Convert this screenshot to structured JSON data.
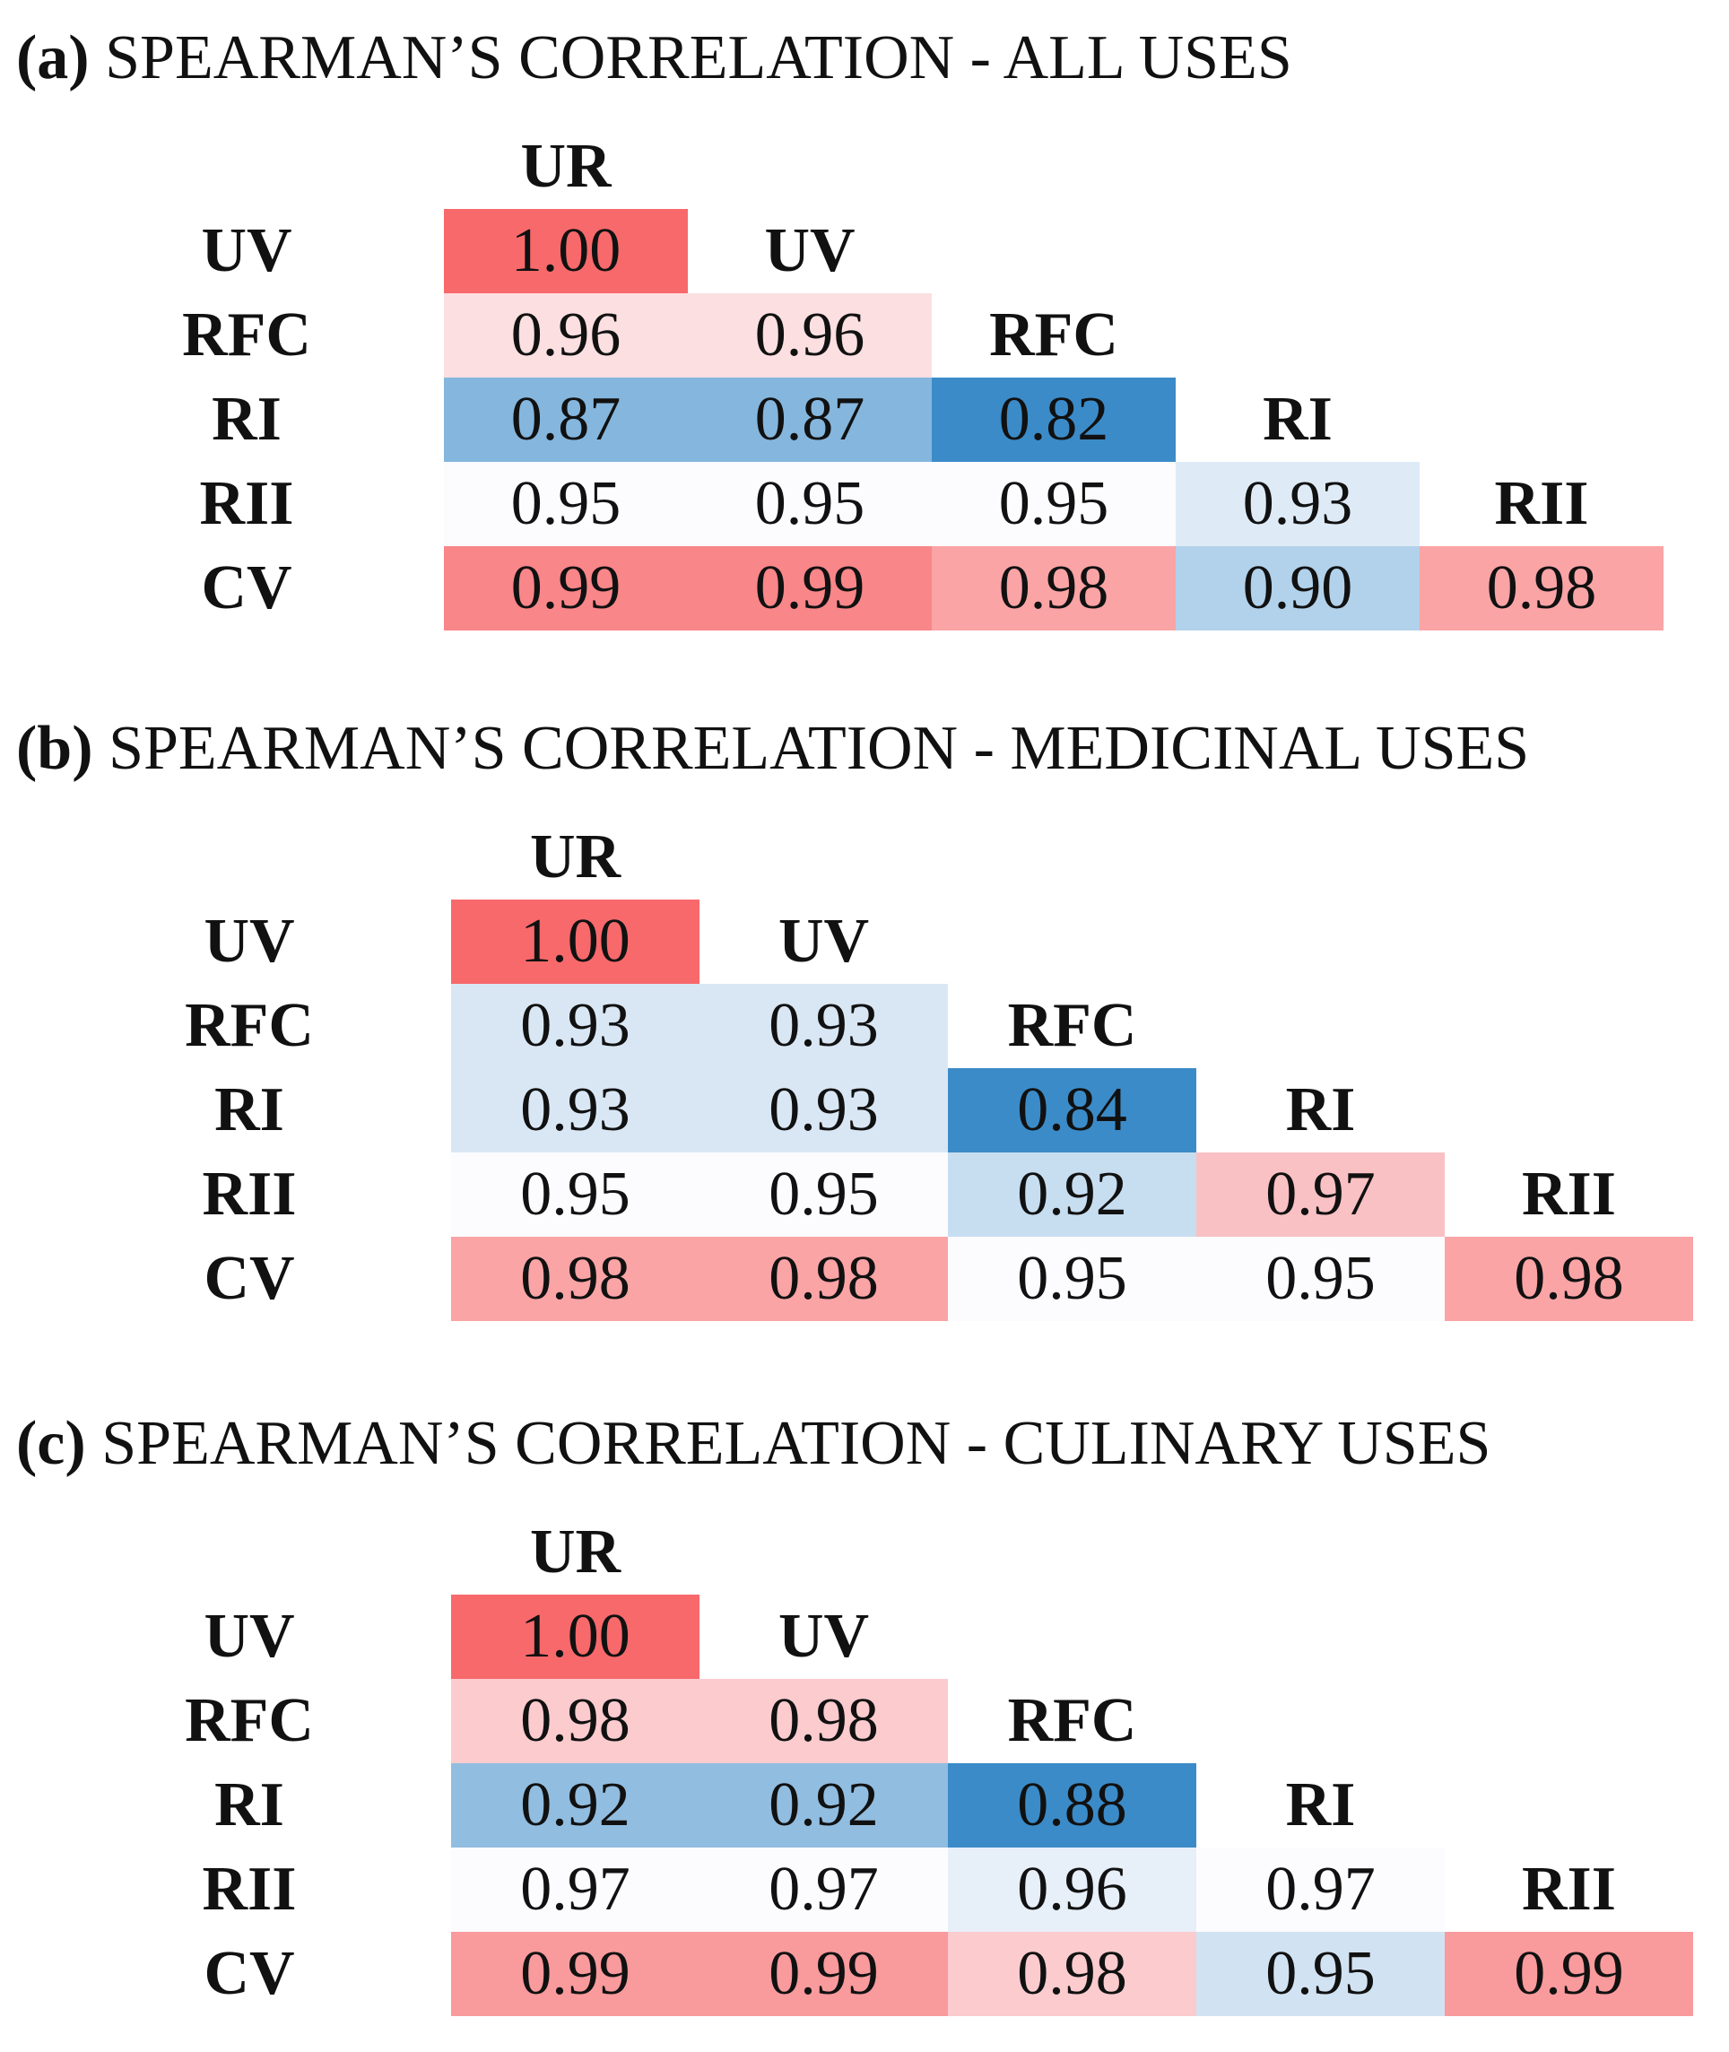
{
  "colors": {
    "high": "#f8696b",
    "mid": "#fcfcff",
    "low": "#3b8bc8"
  },
  "chart_data": [
    {
      "type": "heatmap",
      "title_letter": "(a)",
      "title": "SPEARMAN’S CORRELATION - ALL USES",
      "columns": [
        "UR",
        "UV",
        "RFC",
        "RI",
        "RII"
      ],
      "rows": [
        "UV",
        "RFC",
        "RI",
        "RII",
        "CV"
      ],
      "values": [
        [
          1.0
        ],
        [
          0.96,
          0.96
        ],
        [
          0.87,
          0.87,
          0.82
        ],
        [
          0.95,
          0.95,
          0.95,
          0.93
        ],
        [
          0.99,
          0.99,
          0.98,
          0.9,
          0.98
        ]
      ],
      "labels": [
        [
          "1.00"
        ],
        [
          "0.96",
          "0.96"
        ],
        [
          "0.87",
          "0.87",
          "0.82"
        ],
        [
          "0.95",
          "0.95",
          "0.95",
          "0.93"
        ],
        [
          "0.99",
          "0.99",
          "0.98",
          "0.90",
          "0.98"
        ]
      ],
      "vrange": [
        0.82,
        1.0
      ]
    },
    {
      "type": "heatmap",
      "title_letter": "(b)",
      "title": "SPEARMAN’S CORRELATION - MEDICINAL USES",
      "columns": [
        "UR",
        "UV",
        "RFC",
        "RI",
        "RII"
      ],
      "rows": [
        "UV",
        "RFC",
        "RI",
        "RII",
        "CV"
      ],
      "values": [
        [
          1.0
        ],
        [
          0.93,
          0.93
        ],
        [
          0.93,
          0.93,
          0.84
        ],
        [
          0.95,
          0.95,
          0.92,
          0.97
        ],
        [
          0.98,
          0.98,
          0.95,
          0.95,
          0.98
        ]
      ],
      "labels": [
        [
          "1.00"
        ],
        [
          "0.93",
          "0.93"
        ],
        [
          "0.93",
          "0.93",
          "0.84"
        ],
        [
          "0.95",
          "0.95",
          "0.92",
          "0.97"
        ],
        [
          "0.98",
          "0.98",
          "0.95",
          "0.95",
          "0.98"
        ]
      ],
      "vrange": [
        0.84,
        1.0
      ]
    },
    {
      "type": "heatmap",
      "title_letter": "(c)",
      "title": "SPEARMAN’S CORRELATION - CULINARY USES",
      "columns": [
        "UR",
        "UV",
        "RFC",
        "RI",
        "RII"
      ],
      "rows": [
        "UV",
        "RFC",
        "RI",
        "RII",
        "CV"
      ],
      "values": [
        [
          1.0
        ],
        [
          0.98,
          0.98
        ],
        [
          0.92,
          0.92,
          0.88
        ],
        [
          0.97,
          0.97,
          0.96,
          0.97
        ],
        [
          0.99,
          0.99,
          0.98,
          0.95,
          0.99
        ]
      ],
      "labels": [
        [
          "1.00"
        ],
        [
          "0.98",
          "0.98"
        ],
        [
          "0.92",
          "0.92",
          "0.88"
        ],
        [
          "0.97",
          "0.97",
          "0.96",
          "0.97"
        ],
        [
          "0.99",
          "0.99",
          "0.98",
          "0.95",
          "0.99"
        ]
      ],
      "vrange": [
        0.88,
        1.0
      ]
    }
  ]
}
